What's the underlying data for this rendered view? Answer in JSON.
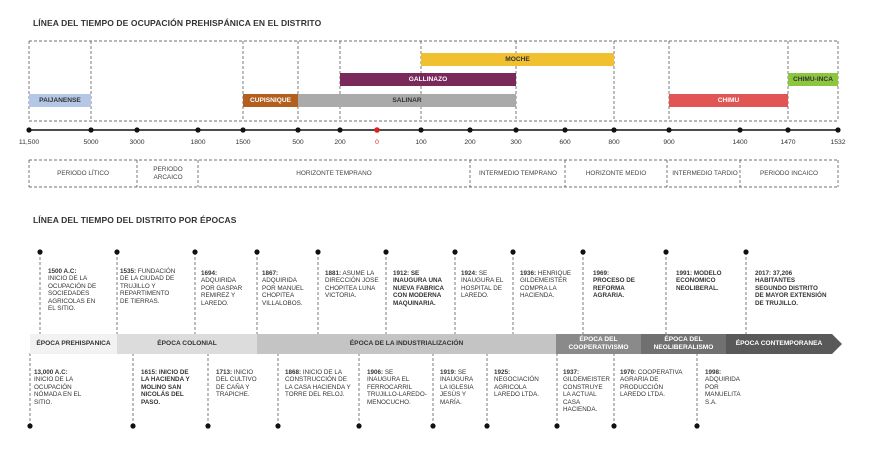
{
  "prehispanic": {
    "title": "LÍNEA DEL TIEMPO DE OCUPACIÓN PREHISPÁNICA EN EL DISTRITO",
    "bars": [
      {
        "label": "PAIJANENSE",
        "color": "#b4c7e7",
        "text": "#333333"
      },
      {
        "label": "CUPISNIQUE",
        "color": "#b35f1e",
        "text": "#ffffff"
      },
      {
        "label": "SALINAR",
        "color": "#aaaaaa",
        "text": "#333333"
      },
      {
        "label": "GALLINAZO",
        "color": "#7a2a5a",
        "text": "#ffffff"
      },
      {
        "label": "MOCHE",
        "color": "#f0c030",
        "text": "#333333"
      },
      {
        "label": "CHIMU",
        "color": "#e15555",
        "text": "#ffffff"
      },
      {
        "label": "CHIMU-INCA",
        "color": "#8cc63f",
        "text": "#333333"
      }
    ],
    "ticks": [
      "11,500",
      "5000",
      "3000",
      "1800",
      "1500",
      "500",
      "200",
      "0",
      "100",
      "200",
      "300",
      "600",
      "800",
      "900",
      "1400",
      "1470",
      "1532"
    ],
    "periods": [
      "PERIODO LÍTICO",
      "PERIODO ARCAICO",
      "HORIZONTE TEMPRANO",
      "INTERMEDIO TEMPRANO",
      "HORIZONTE MEDIO",
      "INTERMEDIO TARDIO",
      "PERIODO INCAICO"
    ]
  },
  "district": {
    "title": "LÍNEA DEL TIEMPO DEL DISTRITO POR ÉPOCAS",
    "eras": [
      {
        "label": "ÉPOCA PREHISPANICA",
        "color": "#f2f2f2",
        "text": "#333333"
      },
      {
        "label": "ÉPOCA COLONIAL",
        "color": "#dcdcdc",
        "text": "#333333"
      },
      {
        "label": "ÉPOCA DE LA INDUSTRIALIZACIÓN",
        "color": "#c4c4c4",
        "text": "#333333"
      },
      {
        "label": "ÉPOCA DEL COOPERATIVISMO",
        "color": "#8a8a8a",
        "text": "#ffffff"
      },
      {
        "label": "ÉPOCA DEL NEOLIBERALISMO",
        "color": "#707070",
        "text": "#ffffff"
      },
      {
        "label": "ÉPOCA CONTEMPORANEA",
        "color": "#595959",
        "text": "#ffffff"
      }
    ],
    "top_events": [
      {
        "year": "1500 a.C:",
        "text": "INICIO DE LA OCUPACIÓN DE SOCIEDADES AGRICOLAS EN EL SITIO."
      },
      {
        "year": "1535:",
        "text": "FUNDACIÓN DE LA CIUDAD DE TRUJILLO Y REPARTIMENTO DE TIERRAS."
      },
      {
        "year": "1694:",
        "text": "ADQUIRIDA POR GASPAR REMIREZ Y LAREDO."
      },
      {
        "year": "1867:",
        "text": "ADQUIRIDA POR MANUEL CHOPITEA VILLALOBOS."
      },
      {
        "year": "1881:",
        "text": "ASUME LA DIRECCIÓN JOSE CHOPITEA LUNA VICTORIA."
      },
      {
        "year": "1912:",
        "text": "SE INAUGURA UNA NUEVA FABRICA CON MODERNA MAQUINARIA."
      },
      {
        "year": "1924:",
        "text": "SE INAUGURA EL HOSPITAL DE LAREDO."
      },
      {
        "year": "1936:",
        "text": "HENRIQUE GILDEMEISTER COMPRA LA HACIENDA."
      },
      {
        "year": "1969:",
        "text": "PROCESO DE REFORMA AGRARIA."
      },
      {
        "year": "1991:",
        "text": "MODELO ECONOMICO NEOLIBERAL."
      },
      {
        "year": "2017:",
        "text": "37,206 HABITANTES SEGUNDO DISTRITO DE MAYOR EXTENSIÓN DE TRUJILLO."
      }
    ],
    "bottom_events": [
      {
        "year": "13,000 a.C:",
        "text": "INICIO DE LA OCUPACIÓN NÓMADA EN EL SITIO."
      },
      {
        "year": "1615:",
        "text": "INICIO DE LA HACIENDA Y MOLINO SAN NICOLÁS DEL PASO."
      },
      {
        "year": "1713:",
        "text": "INICIO DEL CULTIVO DE CAÑA Y TRAPICHE."
      },
      {
        "year": "1868:",
        "text": "INICIO DE LA CONSTRUCCIÓN DE LA CASA HACIENDA Y TORRE DEL RELOJ."
      },
      {
        "year": "1906:",
        "text": "SE INAUGURA EL FERROCARRIL TRUJILLO-LAREDO-MENOCUCHO."
      },
      {
        "year": "1919:",
        "text": "SE INAUGURA LA IGLESIA JESÚS Y MARÍA."
      },
      {
        "year": "1925:",
        "text": "NEGOCIACIÓN AGRICOLA LAREDO LTDA."
      },
      {
        "year": "1937:",
        "text": "GILDEMEISTER CONSTRUYE LA ACTUAL CASA HACIENDA."
      },
      {
        "year": "1970:",
        "text": "COOPERATIVA AGRARIA DE PRODUCCIÓN LAREDO LTDA."
      },
      {
        "year": "1998:",
        "text": "ADQUIRIDA POR MANUELITA S.A."
      }
    ]
  }
}
